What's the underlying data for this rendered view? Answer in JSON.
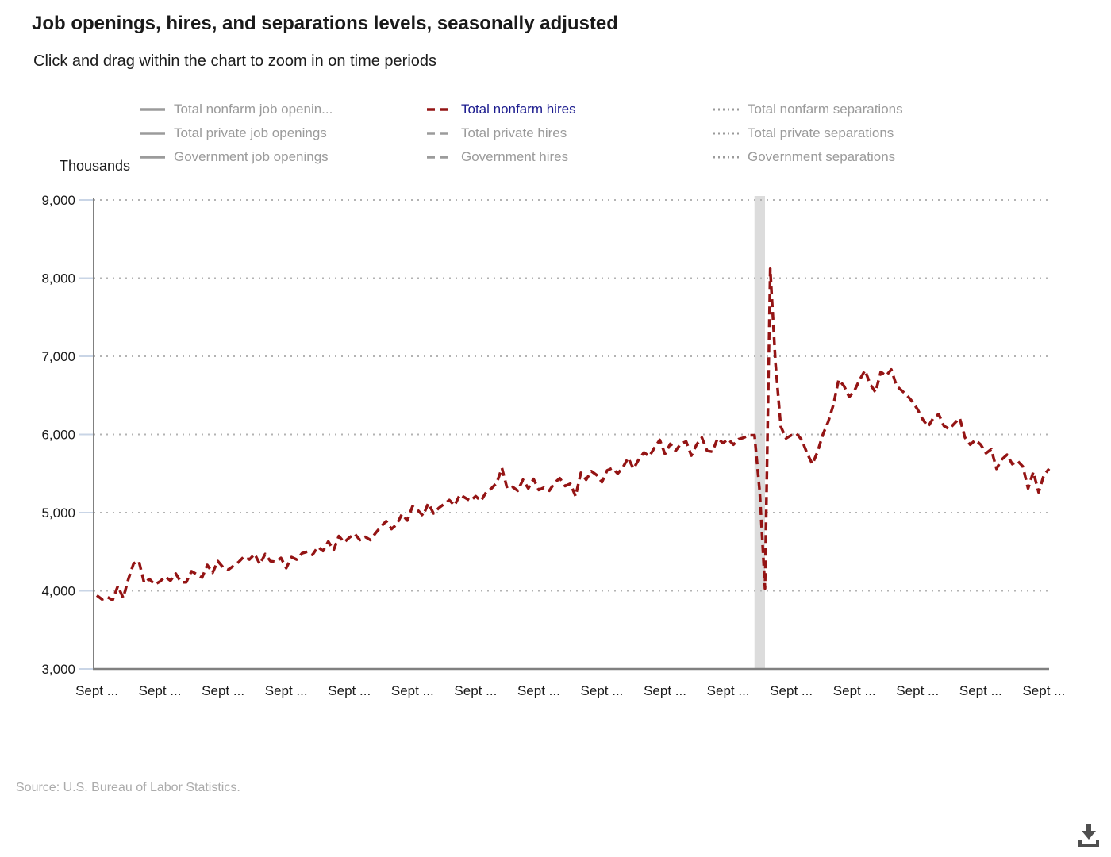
{
  "header": {
    "title": "Job openings, hires, and separations levels, seasonally adjusted",
    "subtitle": "Click and drag within the chart to zoom in on time periods"
  },
  "legend": {
    "items": [
      {
        "label": "Total nonfarm job openin...",
        "style": "solid",
        "color": "#9b9b9b",
        "active": false
      },
      {
        "label": "Total private job openings",
        "style": "solid",
        "color": "#9b9b9b",
        "active": false
      },
      {
        "label": "Government job openings",
        "style": "solid",
        "color": "#9b9b9b",
        "active": false
      },
      {
        "label": "Total nonfarm hires",
        "style": "dashed",
        "color": "#941414",
        "active": true
      },
      {
        "label": "Total private hires",
        "style": "dashed",
        "color": "#9b9b9b",
        "active": false
      },
      {
        "label": "Government hires",
        "style": "dashed",
        "color": "#9b9b9b",
        "active": false
      },
      {
        "label": "Total nonfarm separations",
        "style": "dotted",
        "color": "#9b9b9b",
        "active": false
      },
      {
        "label": "Total private separations",
        "style": "dotted",
        "color": "#9b9b9b",
        "active": false
      },
      {
        "label": "Government separations",
        "style": "dotted",
        "color": "#9b9b9b",
        "active": false
      }
    ]
  },
  "chart_data": {
    "type": "line",
    "title": "Job openings, hires, and separations levels, seasonally adjusted",
    "ylabel": "Thousands",
    "ylim": [
      3000,
      9000
    ],
    "grid": "horizontal-dotted",
    "y_ticks": [
      {
        "value": 3000,
        "label": "3,000"
      },
      {
        "value": 4000,
        "label": "4,000"
      },
      {
        "value": 5000,
        "label": "5,000"
      },
      {
        "value": 6000,
        "label": "6,000"
      },
      {
        "value": 7000,
        "label": "7,000"
      },
      {
        "value": 8000,
        "label": "8,000"
      },
      {
        "value": 9000,
        "label": "9,000"
      }
    ],
    "x_tick_labels": [
      "Sept ...",
      "Sept ...",
      "Sept ...",
      "Sept ...",
      "Sept ...",
      "Sept ...",
      "Sept ...",
      "Sept ...",
      "Sept ...",
      "Sept ...",
      "Sept ...",
      "Sept ...",
      "Sept ...",
      "Sept ...",
      "Sept ...",
      "Sept ..."
    ],
    "x_ticks_every_n_points": 12,
    "recession_band": {
      "start_index": 125,
      "end_index": 127,
      "color": "#dcdcdc"
    },
    "series": [
      {
        "name": "Total nonfarm hires",
        "color": "#941414",
        "dash": "dashed",
        "values": [
          3940,
          3890,
          3920,
          3880,
          4060,
          3910,
          4150,
          4350,
          4380,
          4100,
          4150,
          4080,
          4120,
          4180,
          4130,
          4220,
          4110,
          4110,
          4250,
          4210,
          4170,
          4330,
          4230,
          4380,
          4300,
          4270,
          4320,
          4370,
          4440,
          4400,
          4470,
          4340,
          4470,
          4380,
          4370,
          4420,
          4290,
          4430,
          4400,
          4480,
          4500,
          4460,
          4560,
          4510,
          4630,
          4520,
          4700,
          4620,
          4680,
          4730,
          4650,
          4690,
          4650,
          4740,
          4820,
          4890,
          4790,
          4850,
          4980,
          4900,
          5080,
          5030,
          4960,
          5120,
          4990,
          5060,
          5110,
          5160,
          5090,
          5230,
          5190,
          5150,
          5210,
          5150,
          5260,
          5310,
          5380,
          5570,
          5310,
          5330,
          5280,
          5420,
          5310,
          5430,
          5290,
          5320,
          5280,
          5380,
          5440,
          5340,
          5370,
          5210,
          5510,
          5420,
          5530,
          5480,
          5390,
          5540,
          5570,
          5500,
          5580,
          5700,
          5560,
          5680,
          5770,
          5720,
          5830,
          5930,
          5750,
          5880,
          5790,
          5880,
          5910,
          5730,
          5870,
          5960,
          5790,
          5780,
          5950,
          5890,
          5940,
          5870,
          5940,
          5960,
          5990,
          5990,
          5260,
          4030,
          8120,
          6900,
          6100,
          5950,
          5990,
          6010,
          5930,
          5760,
          5620,
          5780,
          6000,
          6160,
          6380,
          6700,
          6620,
          6480,
          6560,
          6700,
          6820,
          6640,
          6540,
          6800,
          6750,
          6830,
          6620,
          6560,
          6500,
          6420,
          6320,
          6190,
          6100,
          6210,
          6260,
          6110,
          6070,
          6140,
          6210,
          5960,
          5870,
          5930,
          5870,
          5760,
          5810,
          5560,
          5680,
          5740,
          5620,
          5660,
          5590,
          5310,
          5520,
          5260,
          5480,
          5560
        ]
      }
    ],
    "legend_position": "top"
  },
  "footer": {
    "source": "Source: U.S. Bureau of Labor Statistics."
  },
  "icons": {
    "download": "download-icon"
  },
  "colors": {
    "series_red": "#941414",
    "legend_active_text": "#1b1b8e",
    "legend_text": "#9b9b9b",
    "axis_line": "#808080",
    "gridline": "#b3b3b3",
    "y_tick": "#c9d5e6",
    "label_text": "#1a1a1a",
    "recession_band": "#dcdcdc",
    "source_text": "#ababab",
    "download_icon": "#4f4f4f"
  }
}
